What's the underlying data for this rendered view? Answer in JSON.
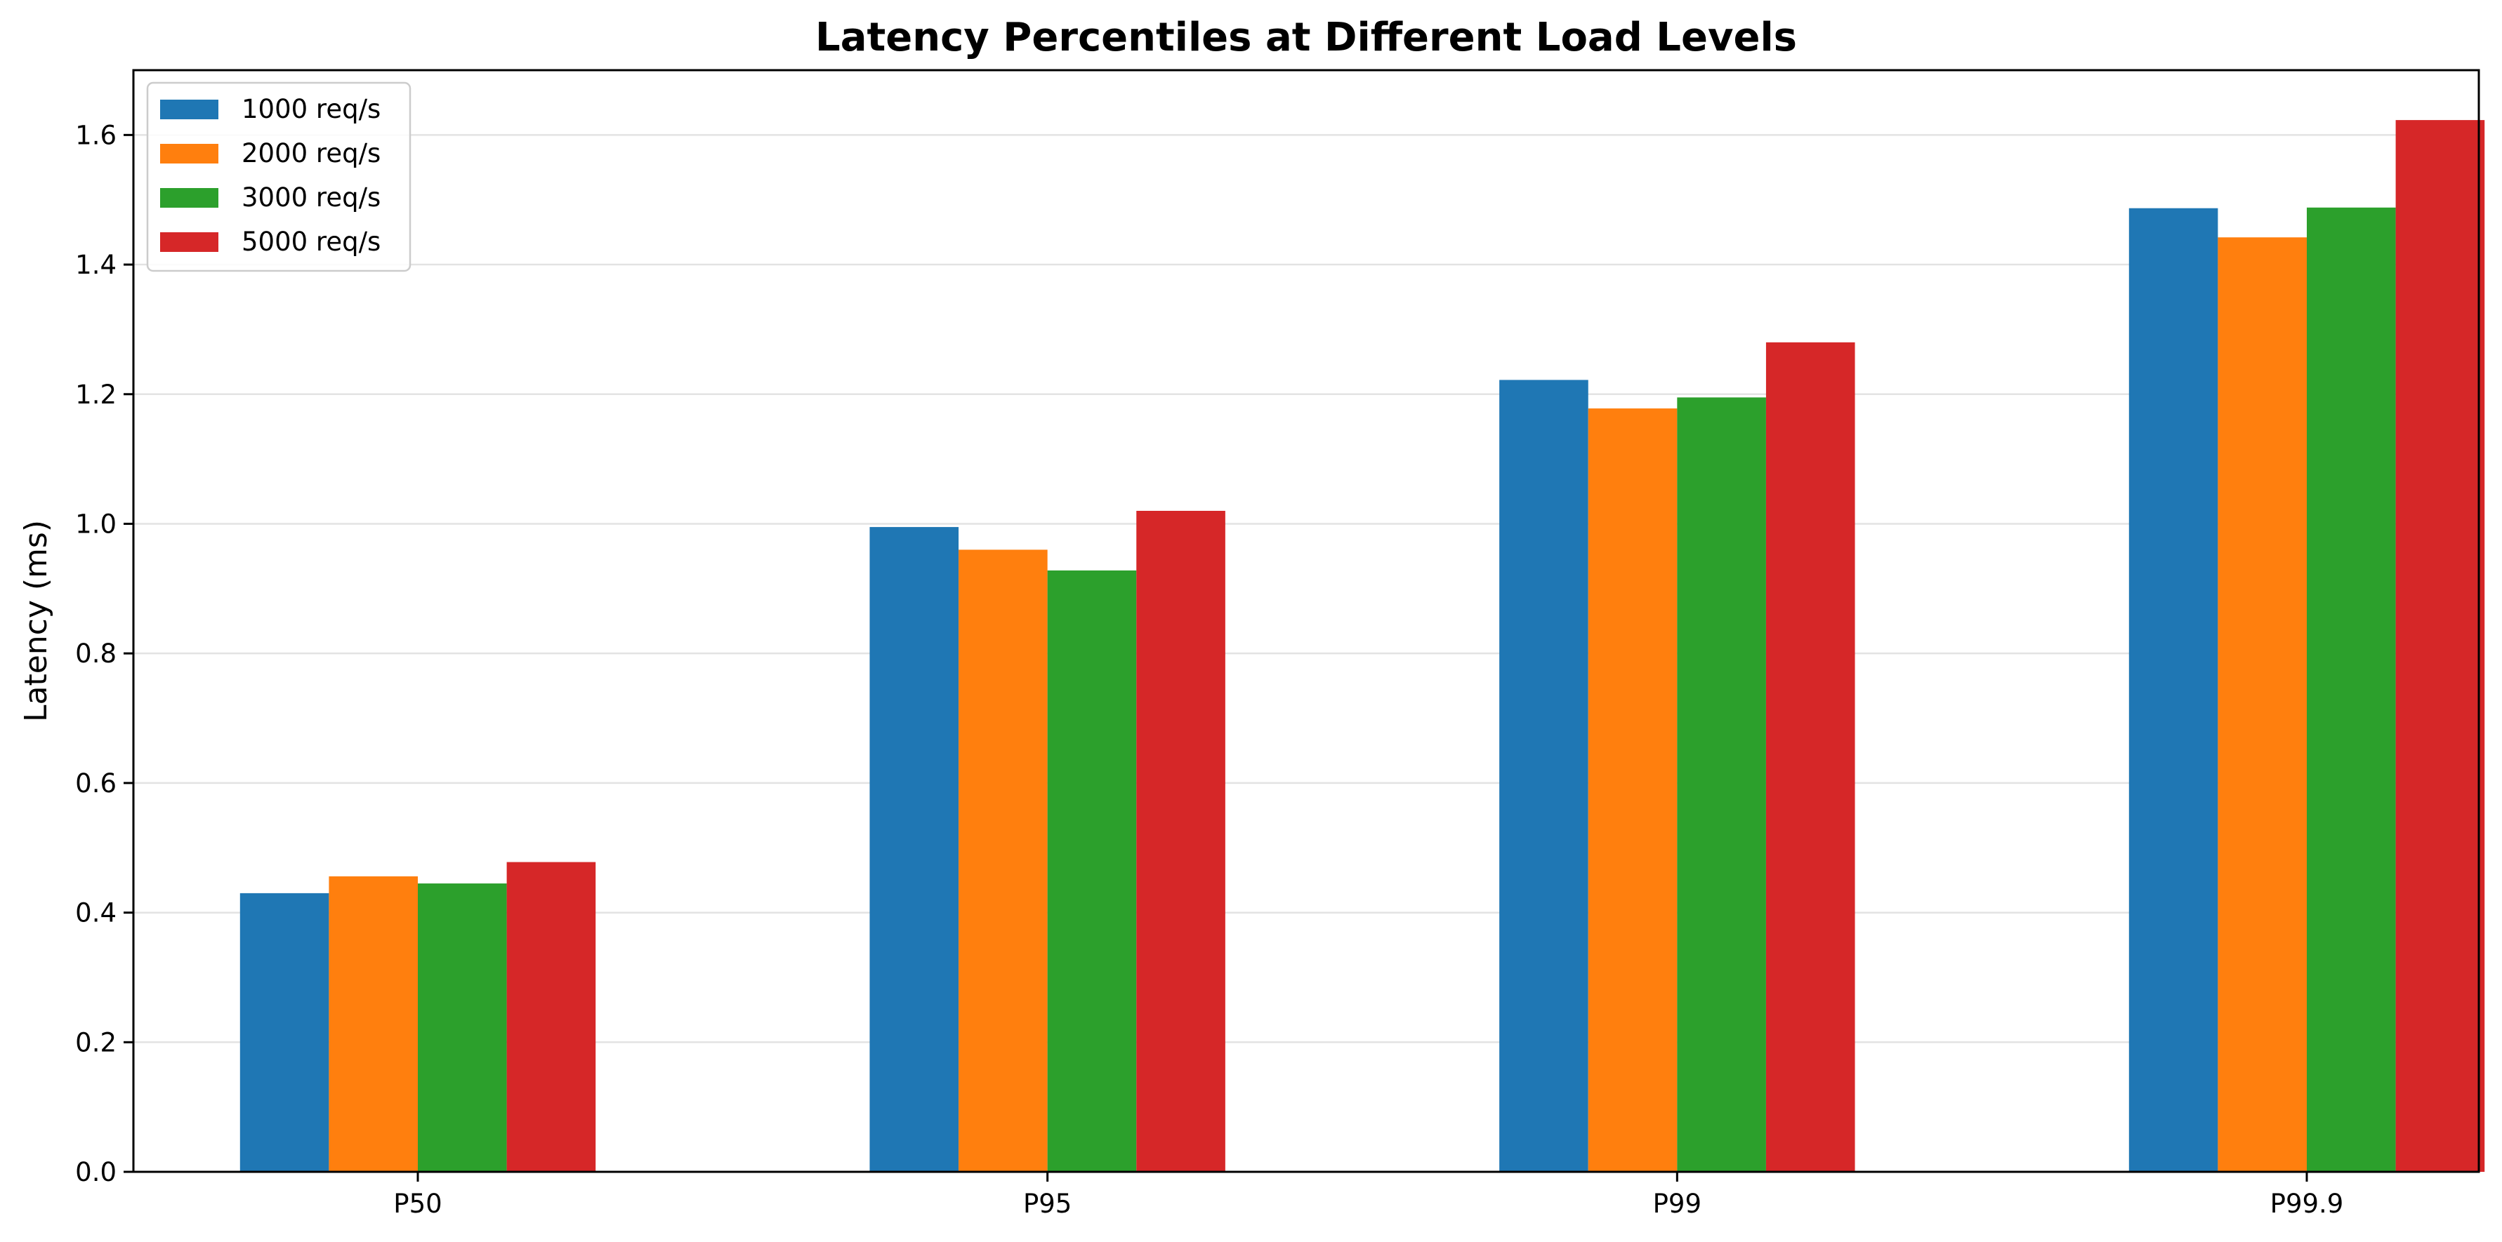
{
  "chart_data": {
    "type": "bar",
    "title": "Latency Percentiles at Different Load Levels",
    "xlabel": "",
    "ylabel": "Latency (ms)",
    "categories": [
      "P50",
      "P95",
      "P99",
      "P99.9"
    ],
    "series": [
      {
        "name": "1000 req/s",
        "color": "#1f77b4",
        "values": [
          0.43,
          0.995,
          1.222,
          1.487
        ]
      },
      {
        "name": "2000 req/s",
        "color": "#ff7f0e",
        "values": [
          0.456,
          0.96,
          1.178,
          1.442
        ]
      },
      {
        "name": "3000 req/s",
        "color": "#2ca02c",
        "values": [
          0.445,
          0.928,
          1.195,
          1.488
        ]
      },
      {
        "name": "5000 req/s",
        "color": "#d62728",
        "values": [
          0.478,
          1.02,
          1.28,
          1.623
        ]
      }
    ],
    "ylim": [
      0,
      1.7
    ],
    "yticks": [
      "0.0",
      "0.2",
      "0.4",
      "0.6",
      "0.8",
      "1.0",
      "1.2",
      "1.4",
      "1.6"
    ],
    "grid": "horizontal",
    "legend_position": "top-left"
  }
}
